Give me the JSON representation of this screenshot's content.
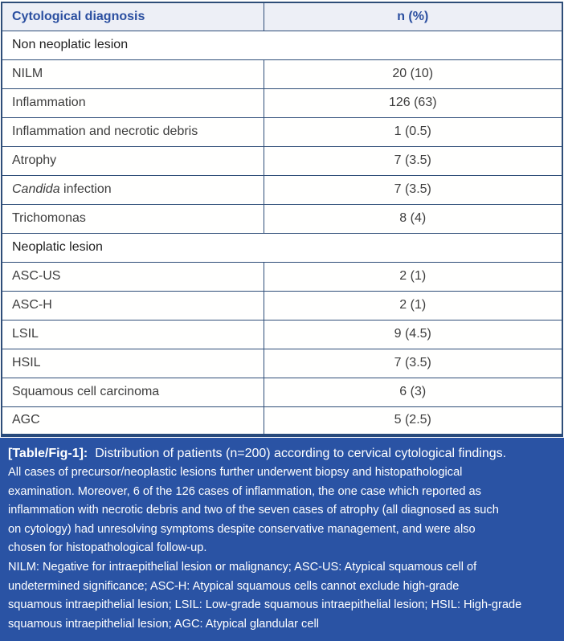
{
  "colors": {
    "table_border": "#2e4d78",
    "table_bottom_border": "#27497b",
    "header_bg": "#edeff6",
    "header_text": "#2b4fa0",
    "body_text": "#3d3d3d",
    "caption_bg": "#2a53a4",
    "caption_text": "#ffffff"
  },
  "table": {
    "header": {
      "diagnosis": "Cytological diagnosis",
      "n_pct": "n (%)"
    },
    "rows": [
      {
        "type": "section",
        "label": "Non neoplatic lesion"
      },
      {
        "type": "data",
        "label": "NILM",
        "value": "20 (10)"
      },
      {
        "type": "data",
        "label": "Inflammation",
        "value": "126 (63)"
      },
      {
        "type": "data",
        "label": "Inflammation and necrotic debris",
        "value": "1 (0.5)"
      },
      {
        "type": "data",
        "label": "Atrophy",
        "value": "7 (3.5)"
      },
      {
        "type": "data",
        "label_em": "Candida",
        "label_rest": " infection",
        "value": "7 (3.5)"
      },
      {
        "type": "data",
        "label": "Trichomonas",
        "value": "8 (4)"
      },
      {
        "type": "section",
        "label": "Neoplatic lesion"
      },
      {
        "type": "data",
        "label": "ASC-US",
        "value": "2 (1)"
      },
      {
        "type": "data",
        "label": "ASC-H",
        "value": "2 (1)"
      },
      {
        "type": "data",
        "label": "LSIL",
        "value": "9 (4.5)"
      },
      {
        "type": "data",
        "label": "HSIL",
        "value": "7 (3.5)"
      },
      {
        "type": "data",
        "label": "Squamous cell carcinoma",
        "value": "6 (3)"
      },
      {
        "type": "data",
        "label": "AGC",
        "value": "5 (2.5)"
      }
    ]
  },
  "caption": {
    "label": "[Table/Fig-1]:",
    "title": "Distribution of patients (n=200) according to cervical cytological findings.",
    "body_lines": [
      "All cases of precursor/neoplastic lesions further underwent biopsy and histopathological",
      "examination. Moreover, 6 of the 126 cases of inflammation, the one case which reported as",
      "inflammation with necrotic debris and two of the seven cases of atrophy (all diagnosed as such",
      "on cytology) had unresolving symptoms despite conservative management, and were also",
      "chosen for histopathological follow-up.",
      "NILM: Negative for intraepithelial lesion or malignancy; ASC-US: Atypical squamous cell of",
      "undetermined significance; ASC-H: Atypical squamous cells cannot exclude high-grade",
      "squamous intraepithelial lesion; LSIL: Low-grade squamous intraepithelial lesion; HSIL: High-grade",
      "squamous intraepithelial lesion; AGC: Atypical glandular cell"
    ]
  }
}
